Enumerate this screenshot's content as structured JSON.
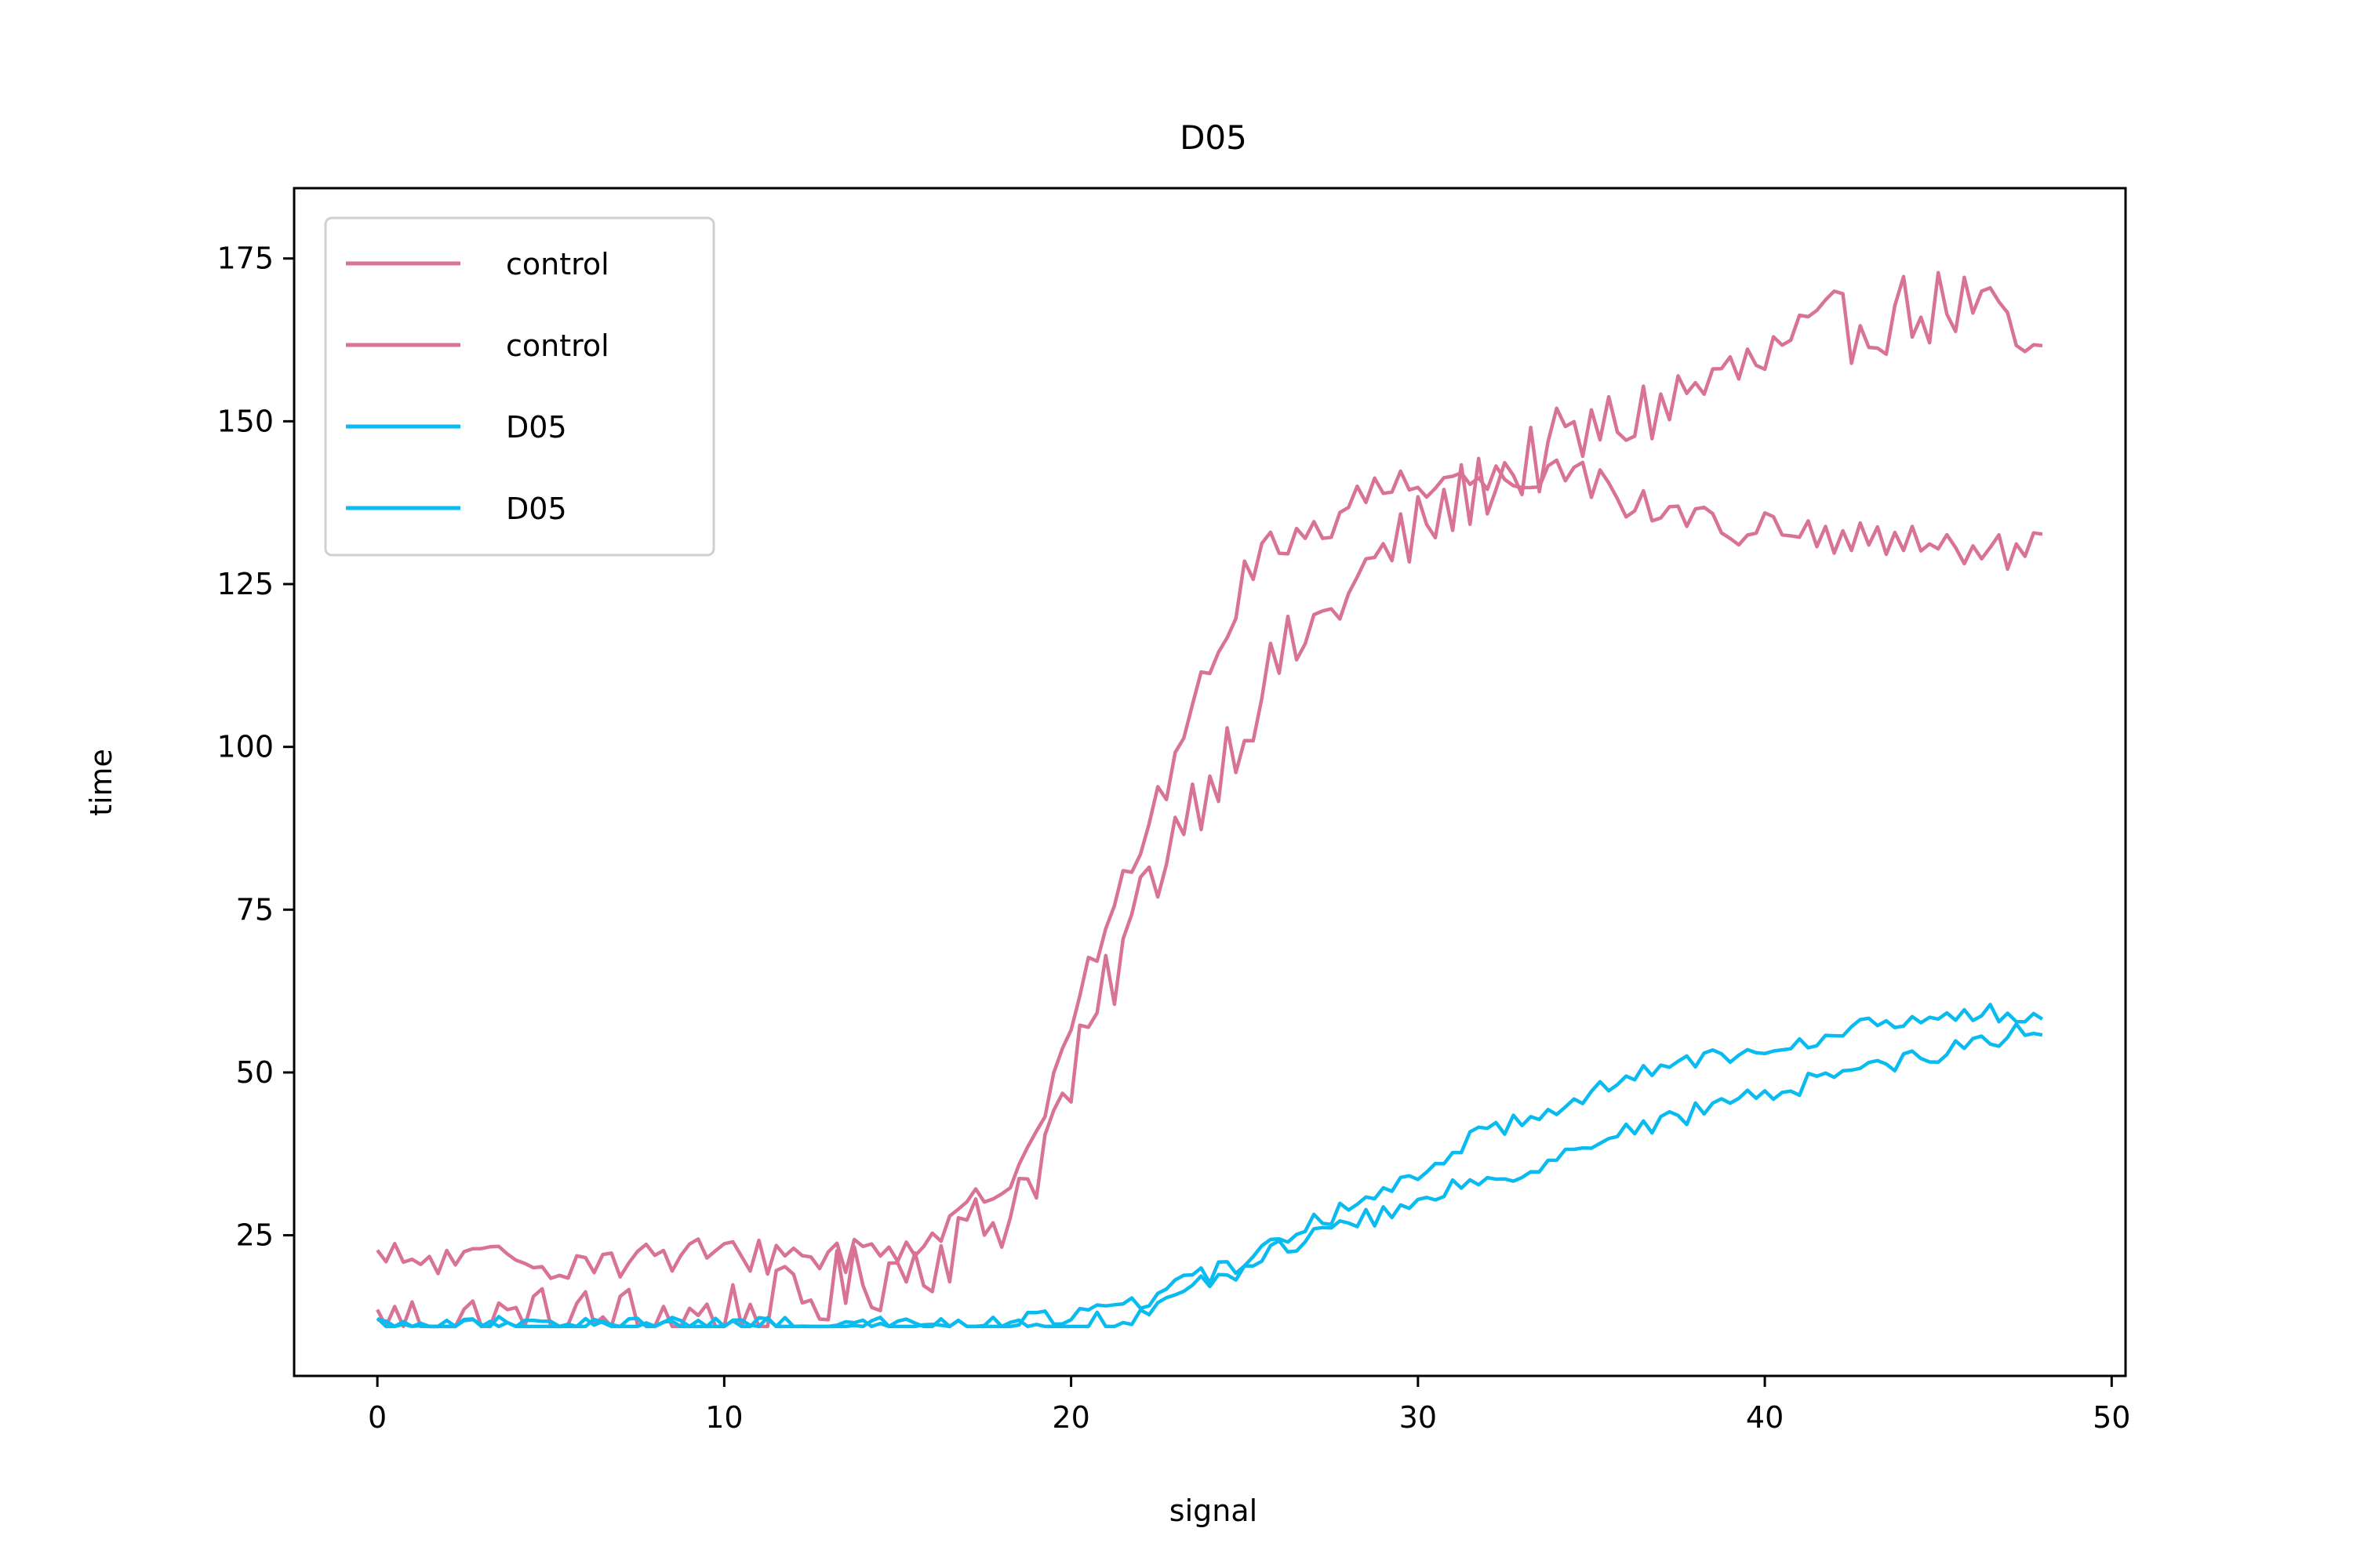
{
  "chart_data": {
    "type": "line",
    "title": "D05",
    "xlabel": "signal",
    "ylabel": "time",
    "xlim": [
      -2.4,
      50.4
    ],
    "ylim": [
      3.4,
      185.8
    ],
    "xticks": [
      0,
      10,
      20,
      30,
      40,
      50
    ],
    "yticks": [
      25,
      50,
      75,
      100,
      125,
      150,
      175
    ],
    "grid": false,
    "legend_position": "upper-left",
    "step": 0.25,
    "series": [
      {
        "name": "control",
        "color": "#d97396",
        "keypoints": [
          [
            0,
            11
          ],
          [
            4,
            11.5
          ],
          [
            8,
            12
          ],
          [
            11,
            13
          ],
          [
            14,
            18
          ],
          [
            16,
            22
          ],
          [
            18,
            28
          ],
          [
            19,
            36
          ],
          [
            20,
            48
          ],
          [
            21,
            62
          ],
          [
            22,
            76
          ],
          [
            23,
            88
          ],
          [
            24,
            95
          ],
          [
            25,
            104
          ],
          [
            26,
            113
          ],
          [
            27,
            118
          ],
          [
            28,
            124
          ],
          [
            29,
            129
          ],
          [
            30,
            133
          ],
          [
            31,
            137
          ],
          [
            32,
            141
          ],
          [
            33,
            143
          ],
          [
            34,
            146
          ],
          [
            36,
            150
          ],
          [
            38,
            155
          ],
          [
            40,
            159
          ],
          [
            42,
            164
          ],
          [
            44,
            167
          ],
          [
            46,
            168
          ],
          [
            48,
            158
          ]
        ],
        "noise": 6
      },
      {
        "name": "control",
        "color": "#d97396",
        "keypoints": [
          [
            0,
            21
          ],
          [
            4,
            21
          ],
          [
            8,
            21.5
          ],
          [
            11,
            22
          ],
          [
            13,
            22
          ],
          [
            15,
            23
          ],
          [
            16,
            25
          ],
          [
            17,
            28
          ],
          [
            18,
            33
          ],
          [
            19,
            42
          ],
          [
            20,
            58
          ],
          [
            21,
            72
          ],
          [
            22,
            85
          ],
          [
            23,
            98
          ],
          [
            24,
            112
          ],
          [
            25,
            126
          ],
          [
            26,
            132
          ],
          [
            27,
            133
          ],
          [
            28,
            137
          ],
          [
            29,
            140
          ],
          [
            30,
            141
          ],
          [
            31,
            141
          ],
          [
            32,
            141
          ],
          [
            33,
            142
          ],
          [
            34,
            143
          ],
          [
            35,
            141
          ],
          [
            36,
            138
          ],
          [
            38,
            135
          ],
          [
            40,
            133
          ],
          [
            42,
            132
          ],
          [
            44,
            131
          ],
          [
            46,
            130
          ],
          [
            48,
            130
          ]
        ],
        "noise": 3
      },
      {
        "name": "D05",
        "color": "#0abbf0",
        "keypoints": [
          [
            0,
            11
          ],
          [
            10,
            11
          ],
          [
            18,
            11
          ],
          [
            20,
            11
          ],
          [
            21,
            12
          ],
          [
            22,
            13
          ],
          [
            23,
            15
          ],
          [
            24,
            18
          ],
          [
            25,
            20
          ],
          [
            26,
            23
          ],
          [
            27,
            25
          ],
          [
            28,
            27
          ],
          [
            29,
            28
          ],
          [
            30,
            30
          ],
          [
            31,
            32
          ],
          [
            32,
            34
          ],
          [
            33,
            35
          ],
          [
            34,
            37
          ],
          [
            35,
            39
          ],
          [
            36,
            41
          ],
          [
            37,
            42
          ],
          [
            38,
            44
          ],
          [
            39,
            45
          ],
          [
            40,
            47
          ],
          [
            41,
            48
          ],
          [
            42,
            50
          ],
          [
            43,
            51
          ],
          [
            44,
            52
          ],
          [
            45,
            53
          ],
          [
            46,
            54
          ],
          [
            47,
            56
          ],
          [
            48,
            57
          ]
        ],
        "noise": 1.5
      },
      {
        "name": "D05",
        "color": "#0abbf0",
        "keypoints": [
          [
            0,
            11
          ],
          [
            10,
            11
          ],
          [
            18,
            11
          ],
          [
            19,
            12
          ],
          [
            20,
            13
          ],
          [
            21,
            14
          ],
          [
            22,
            15
          ],
          [
            23,
            17
          ],
          [
            24,
            19
          ],
          [
            25,
            21
          ],
          [
            26,
            24
          ],
          [
            27,
            27
          ],
          [
            28,
            29
          ],
          [
            29,
            32
          ],
          [
            30,
            35
          ],
          [
            31,
            38
          ],
          [
            32,
            41
          ],
          [
            33,
            43
          ],
          [
            34,
            45
          ],
          [
            35,
            47
          ],
          [
            36,
            49
          ],
          [
            37,
            51
          ],
          [
            38,
            52
          ],
          [
            39,
            53
          ],
          [
            40,
            54
          ],
          [
            41,
            55
          ],
          [
            42,
            56
          ],
          [
            43,
            57
          ],
          [
            44,
            58
          ],
          [
            45,
            58
          ],
          [
            46,
            59
          ],
          [
            47,
            59
          ],
          [
            48,
            59
          ]
        ],
        "noise": 1.5
      }
    ]
  }
}
